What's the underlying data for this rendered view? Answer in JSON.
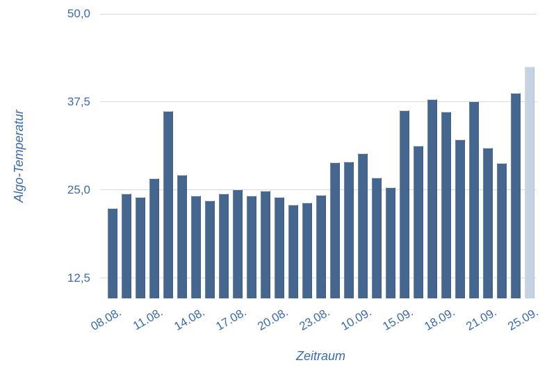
{
  "chart_data": {
    "type": "bar",
    "title": "",
    "xlabel": "Zeitraum",
    "ylabel": "Algo-Temperatur",
    "values": [
      22.4,
      24.5,
      24.0,
      26.6,
      36.2,
      27.1,
      24.2,
      23.5,
      24.5,
      25.1,
      24.2,
      24.9,
      24.0,
      22.9,
      23.2,
      24.3,
      28.9,
      29.0,
      30.2,
      26.7,
      25.4,
      36.3,
      31.3,
      37.9,
      36.1,
      32.2,
      37.6,
      31.0,
      28.8,
      38.8,
      42.5
    ],
    "bar_count": 31,
    "highlight_last_bar": true,
    "y_ticks": [
      {
        "label": "12,5",
        "value": 12.5
      },
      {
        "label": "25,0",
        "value": 25.0
      },
      {
        "label": "37,5",
        "value": 37.5
      },
      {
        "label": "50,0",
        "value": 50.0
      }
    ],
    "x_tick_labels": [
      "08.08.",
      "11.08.",
      "14.08.",
      "17.08.",
      "20.08.",
      "23.08.",
      "10.09.",
      "15.09.",
      "18.09.",
      "21.09.",
      "25.09."
    ],
    "x_tick_every": 3,
    "ylim": [
      9.6,
      50.0
    ],
    "grid": "horizontal",
    "legend": "none",
    "colors": {
      "bar": "#45678f",
      "bar_highlight": "#c5d2e1",
      "grid": "#d9d9d9",
      "text": "#3a6ab0"
    }
  }
}
